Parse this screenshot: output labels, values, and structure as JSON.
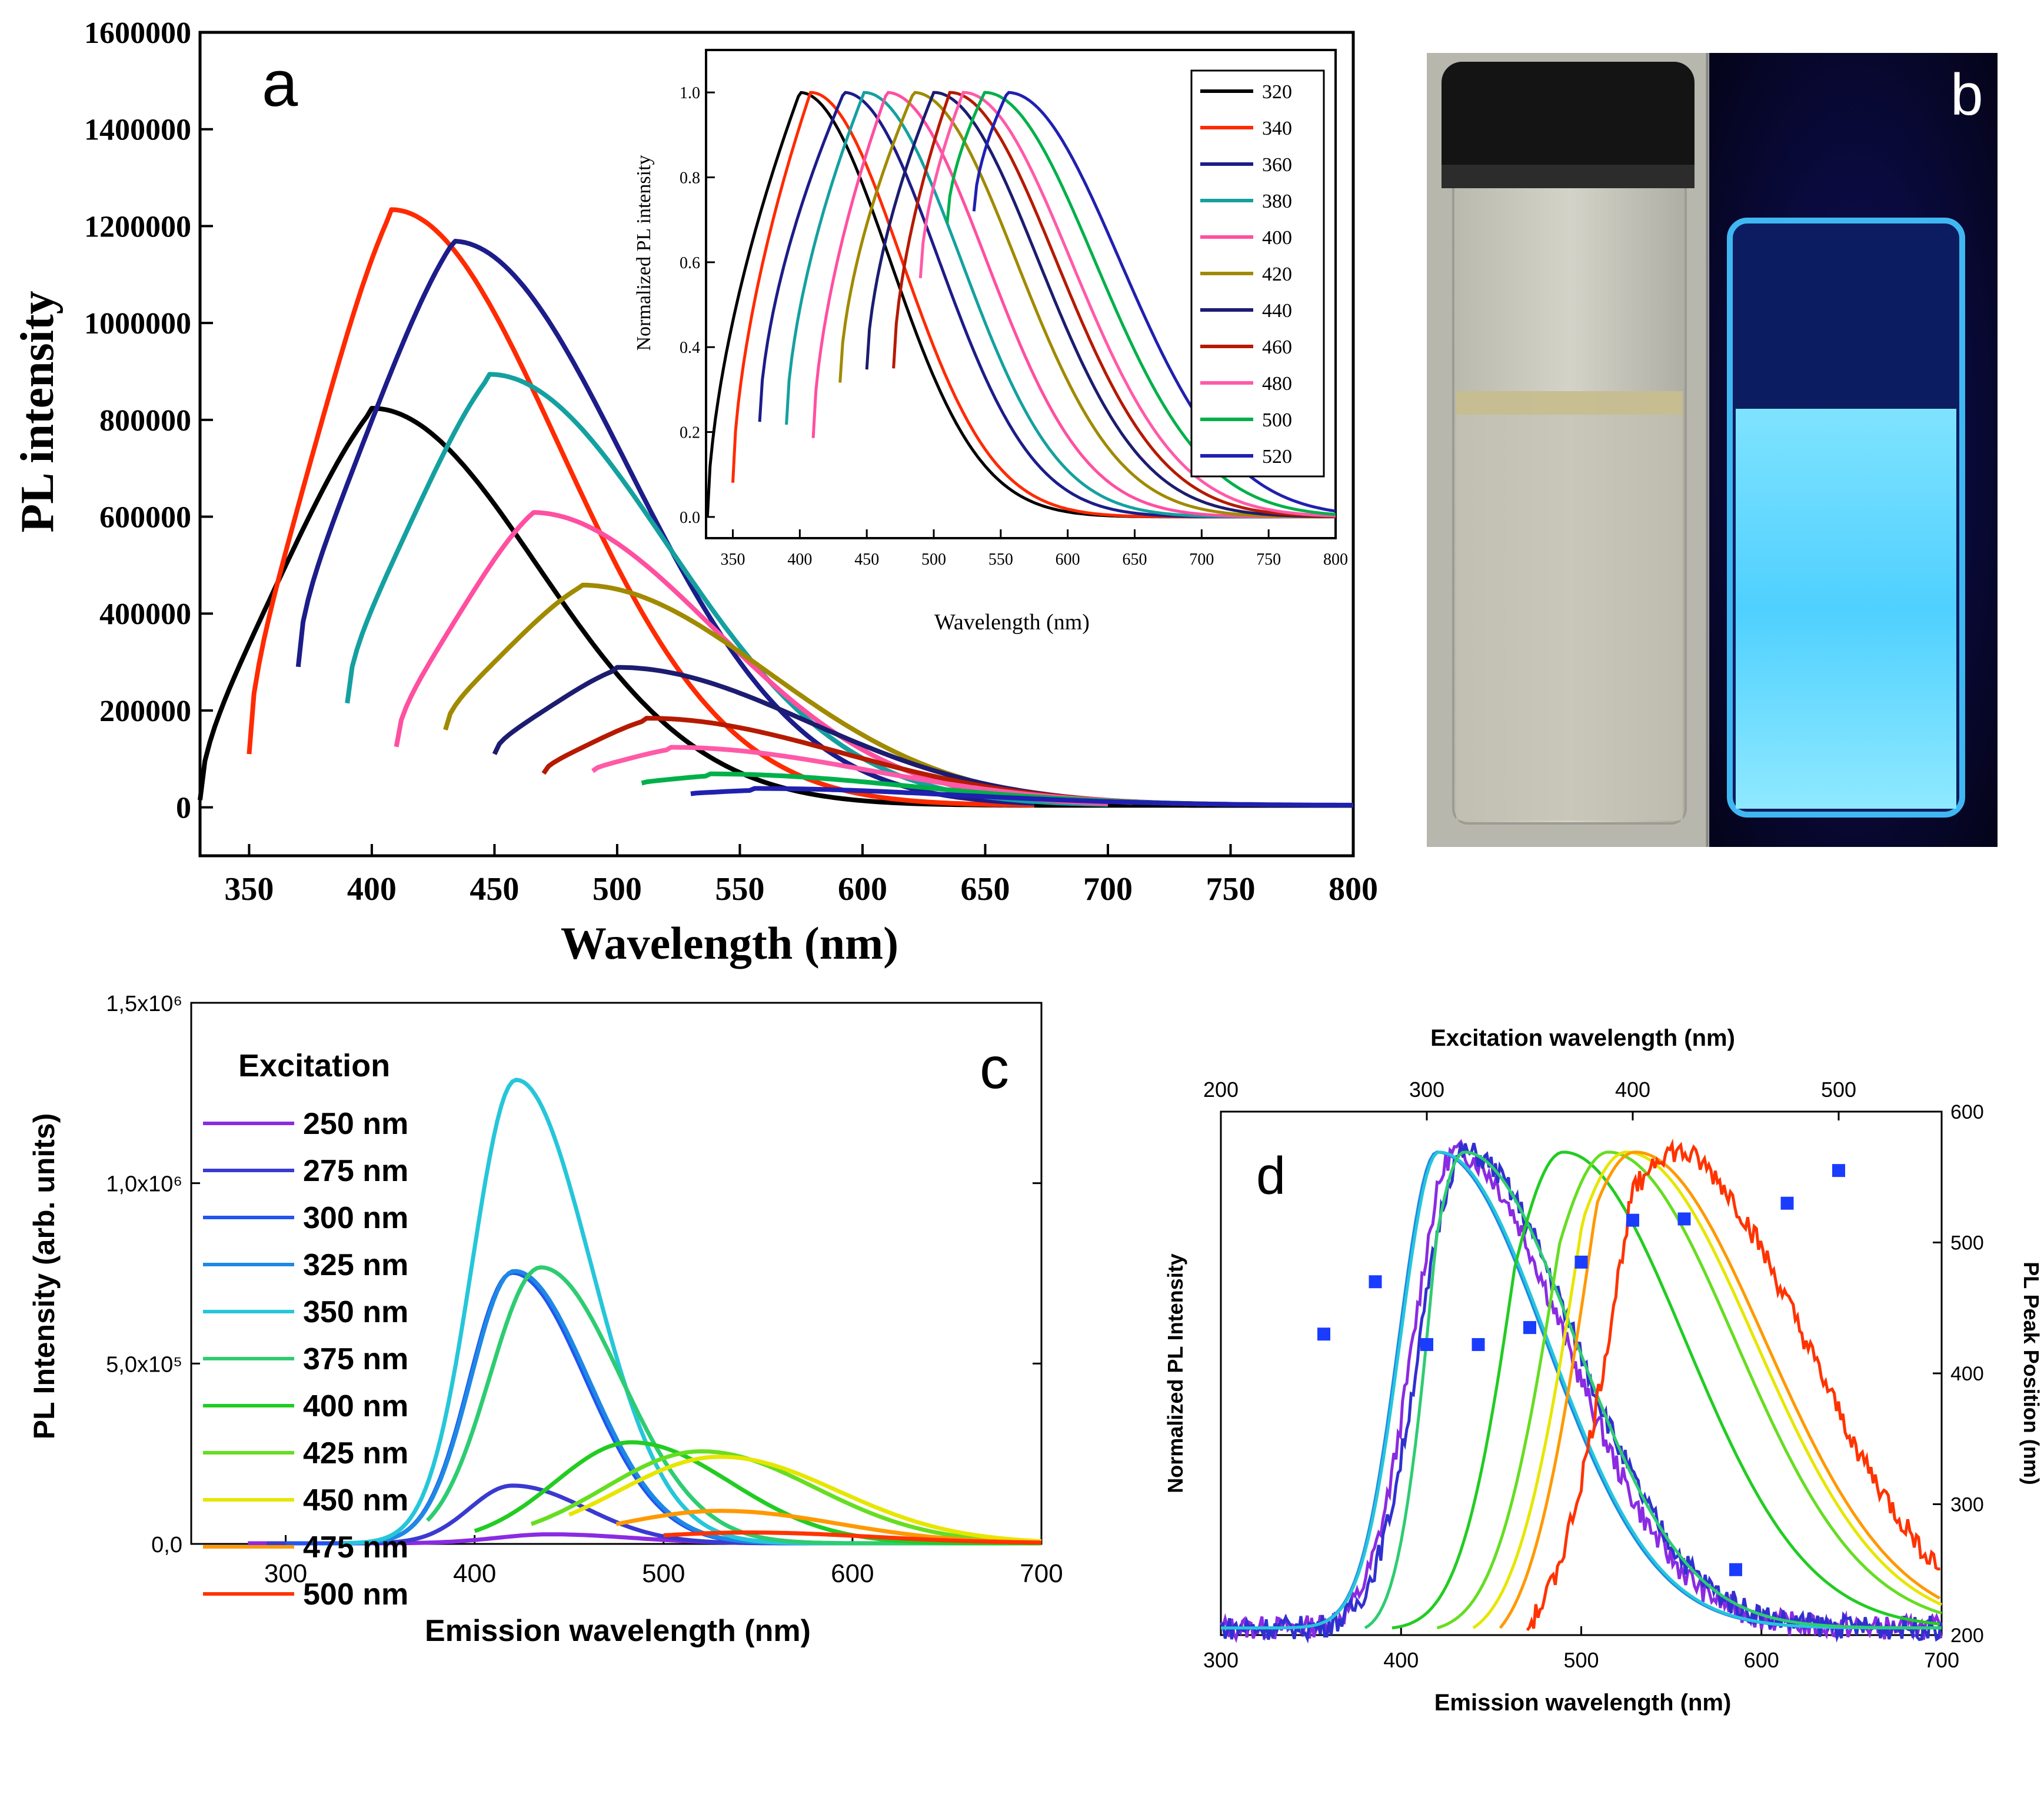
{
  "panel_labels": {
    "a": "a",
    "b": "b",
    "c": "c",
    "d": "d"
  },
  "photo": {
    "vial_cap_color": "#1a1a1a",
    "glow_color": "#5fd7ff",
    "uv_background": "#0a0a3a"
  },
  "chart_data": [
    {
      "id": "a",
      "type": "line",
      "xlabel": "Wavelength (nm)",
      "ylabel": "PL intensity",
      "xlim": [
        330,
        800
      ],
      "ylim": [
        -100000,
        1600000
      ],
      "xticks": [
        350,
        400,
        450,
        500,
        550,
        600,
        650,
        700,
        750,
        800
      ],
      "yticks": [
        0,
        200000,
        400000,
        600000,
        800000,
        1000000,
        1200000,
        1400000,
        1600000
      ],
      "ytick_labels": [
        "0",
        "200000",
        "400000",
        "600000",
        "800000",
        "1000000",
        "1200000",
        "1400000",
        "1600000"
      ],
      "series": [
        {
          "color": "#000000",
          "start": 330,
          "peak_x": 400,
          "peak_y": 820000,
          "start_y": 15000,
          "end": 800
        },
        {
          "color": "#ff2a00",
          "start": 350,
          "peak_x": 408,
          "peak_y": 1230000,
          "start_y": 110000,
          "end": 670
        },
        {
          "color": "#1c1c8a",
          "start": 370,
          "peak_x": 433,
          "peak_y": 1165000,
          "start_y": 290000,
          "end": 670
        },
        {
          "color": "#15a0a0",
          "start": 390,
          "peak_x": 448,
          "peak_y": 890000,
          "start_y": 215000,
          "end": 700
        },
        {
          "color": "#ff4fa0",
          "start": 410,
          "peak_x": 465,
          "peak_y": 605000,
          "start_y": 125000,
          "end": 700
        },
        {
          "color": "#a08a00",
          "start": 430,
          "peak_x": 485,
          "peak_y": 455000,
          "start_y": 160000,
          "end": 710
        },
        {
          "color": "#1c1c70",
          "start": 450,
          "peak_x": 500,
          "peak_y": 285000,
          "start_y": 110000,
          "end": 720
        },
        {
          "color": "#b51a00",
          "start": 470,
          "peak_x": 512,
          "peak_y": 180000,
          "start_y": 70000,
          "end": 730
        },
        {
          "color": "#ff5aa8",
          "start": 490,
          "peak_x": 522,
          "peak_y": 120000,
          "start_y": 75000,
          "end": 740
        },
        {
          "color": "#00b04a",
          "start": 510,
          "peak_x": 538,
          "peak_y": 65000,
          "start_y": 50000,
          "end": 750
        },
        {
          "color": "#2020b0",
          "start": 530,
          "peak_x": 555,
          "peak_y": 35000,
          "start_y": 28000,
          "end": 800
        }
      ],
      "inset": {
        "xlabel": "Wavelength (nm)",
        "ylabel": "Normalized PL intensity",
        "xlim": [
          330,
          800
        ],
        "ylim": [
          -0.05,
          1.1
        ],
        "xticks": [
          350,
          400,
          450,
          500,
          550,
          600,
          650,
          700,
          750,
          800
        ],
        "yticks": [
          0.0,
          0.2,
          0.4,
          0.6,
          0.8,
          1.0
        ],
        "ytick_labels": [
          "0.0",
          "0.2",
          "0.4",
          "0.6",
          "0.8",
          "1.0"
        ],
        "legend": [
          "320",
          "340",
          "360",
          "380",
          "400",
          "420",
          "440",
          "460",
          "480",
          "500",
          "520"
        ]
      }
    },
    {
      "id": "c",
      "type": "line",
      "xlabel": "Emission wavelength (nm)",
      "ylabel": "PL Intensity (arb. units)",
      "xlim": [
        250,
        700
      ],
      "ylim": [
        0,
        1500000
      ],
      "xticks": [
        300,
        400,
        500,
        600,
        700
      ],
      "yticks": [
        0,
        500000,
        1000000,
        1500000
      ],
      "ytick_labels": [
        "0,0",
        "5,0x10⁵",
        "1,0x10⁶",
        "1,5x10⁶"
      ],
      "legend_title": "Excitation",
      "series": [
        {
          "name": "250 nm",
          "color": "#8a2be2",
          "peak_x": 440,
          "peak_y": 25000,
          "start": 280,
          "end": 700
        },
        {
          "name": "275 nm",
          "color": "#3a3ad0",
          "peak_x": 420,
          "peak_y": 160000,
          "start": 290,
          "end": 700
        },
        {
          "name": "300 nm",
          "color": "#2255ee",
          "peak_x": 420,
          "peak_y": 750000,
          "start": 300,
          "end": 700
        },
        {
          "name": "325 nm",
          "color": "#1e88e5",
          "peak_x": 421,
          "peak_y": 755000,
          "start": 330,
          "end": 700
        },
        {
          "name": "350 nm",
          "color": "#26c6da",
          "peak_x": 422,
          "peak_y": 1285000,
          "start": 330,
          "end": 700
        },
        {
          "name": "375 nm",
          "color": "#2ecc71",
          "peak_x": 435,
          "peak_y": 765000,
          "start": 375,
          "end": 700
        },
        {
          "name": "400 nm",
          "color": "#22cc22",
          "peak_x": 483,
          "peak_y": 280000,
          "start": 400,
          "end": 700
        },
        {
          "name": "425 nm",
          "color": "#66dd22",
          "peak_x": 520,
          "peak_y": 255000,
          "start": 430,
          "end": 700
        },
        {
          "name": "450 nm",
          "color": "#e6e600",
          "peak_x": 530,
          "peak_y": 240000,
          "start": 450,
          "end": 700
        },
        {
          "name": "475 nm",
          "color": "#ff9900",
          "peak_x": 530,
          "peak_y": 90000,
          "start": 475,
          "end": 700
        },
        {
          "name": "500 nm",
          "color": "#ff3300",
          "peak_x": 545,
          "peak_y": 30000,
          "start": 500,
          "end": 700
        }
      ]
    },
    {
      "id": "d",
      "type": "line",
      "xlabel": "Emission wavelength (nm)",
      "ylabel": "Normalized PL Intensity",
      "y2label": "PL Peak Position (nm)",
      "x2label": "Excitation wavelength (nm)",
      "xlim": [
        300,
        700
      ],
      "ylim": [
        0,
        1.1
      ],
      "xticks": [
        300,
        400,
        500,
        600,
        700
      ],
      "x2lim": [
        200,
        550
      ],
      "x2ticks": [
        200,
        300,
        400,
        500
      ],
      "y2lim": [
        200,
        600
      ],
      "y2ticks": [
        200,
        300,
        400,
        500,
        600
      ],
      "series": [
        {
          "color": "#8a2be2",
          "start": 300,
          "peak_x": 430,
          "end": 700,
          "noisy": true
        },
        {
          "color": "#3030d0",
          "start": 300,
          "peak_x": 435,
          "end": 700,
          "noisy": true
        },
        {
          "color": "#2255ee",
          "start": 300,
          "peak_x": 420,
          "end": 700
        },
        {
          "color": "#1e88e5",
          "start": 300,
          "peak_x": 420,
          "end": 700
        },
        {
          "color": "#26c6da",
          "start": 300,
          "peak_x": 421,
          "end": 700
        },
        {
          "color": "#2ecc71",
          "start": 380,
          "peak_x": 435,
          "end": 700
        },
        {
          "color": "#22cc22",
          "start": 395,
          "peak_x": 490,
          "end": 700
        },
        {
          "color": "#66dd22",
          "start": 420,
          "peak_x": 515,
          "end": 700
        },
        {
          "color": "#e6e600",
          "start": 440,
          "peak_x": 525,
          "end": 700
        },
        {
          "color": "#ff9900",
          "start": 455,
          "peak_x": 530,
          "end": 700
        },
        {
          "color": "#ff3300",
          "start": 470,
          "peak_x": 550,
          "end": 700,
          "noisy": true
        }
      ],
      "peak_positions": {
        "color": "#1a3cff",
        "x": [
          250,
          275,
          300,
          325,
          350,
          375,
          400,
          425,
          450,
          475,
          500
        ],
        "y": [
          430,
          470,
          422,
          422,
          435,
          485,
          517,
          518,
          250,
          530,
          555
        ]
      }
    }
  ]
}
